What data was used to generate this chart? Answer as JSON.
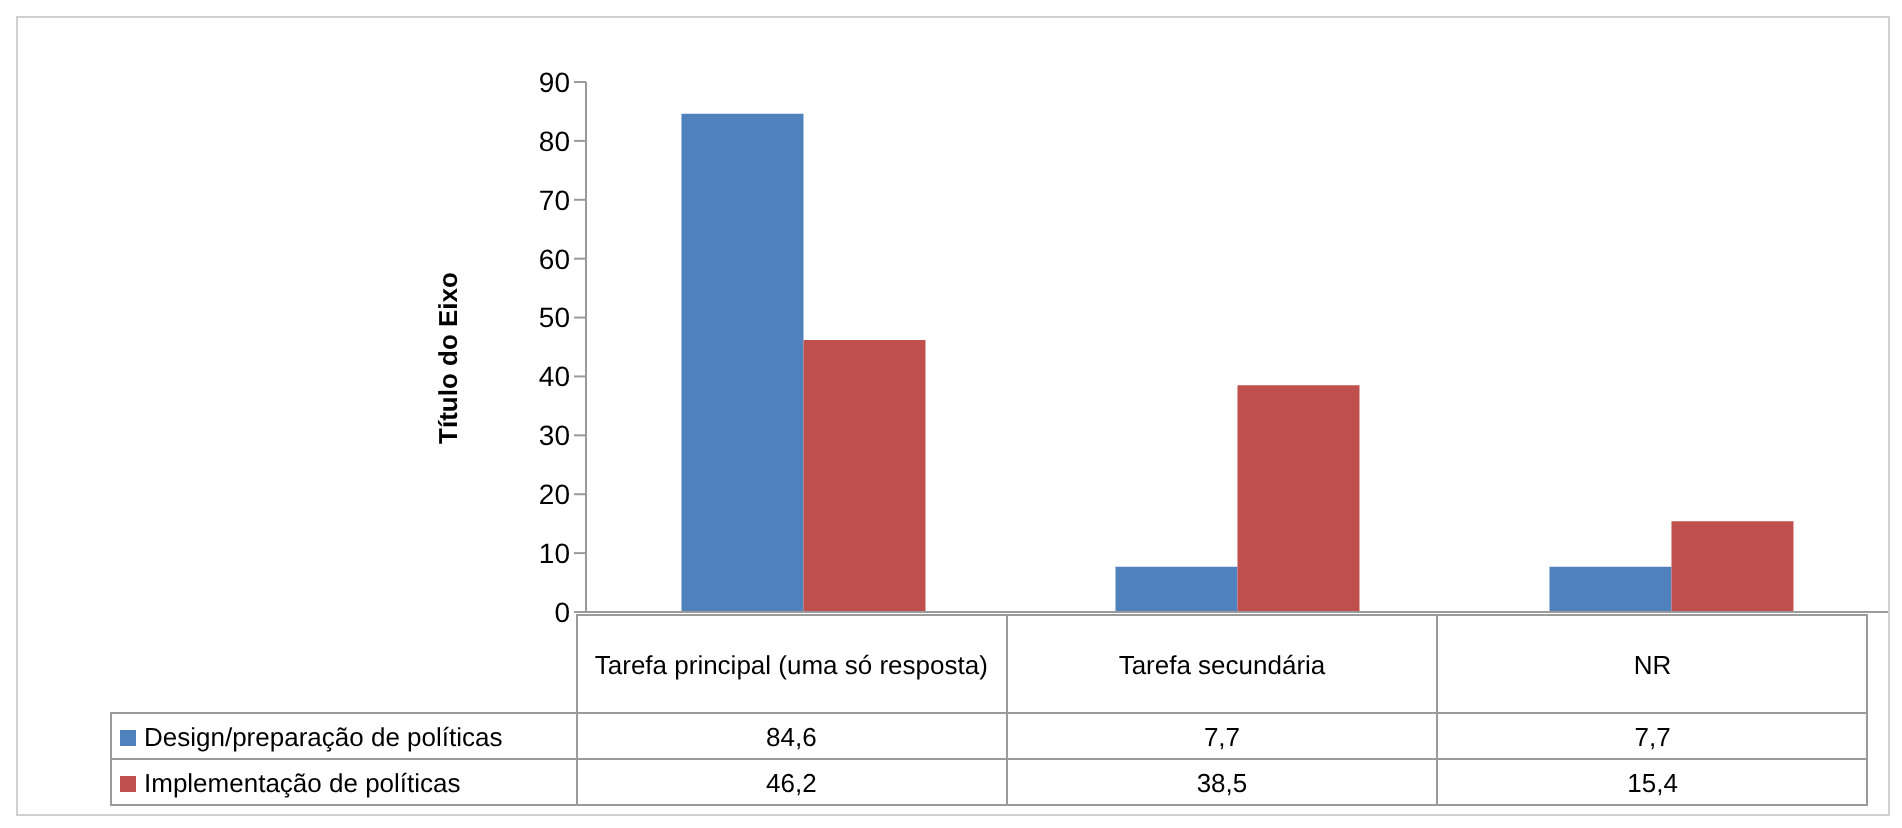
{
  "chart_data": {
    "type": "bar",
    "ylabel": "Título do Eixo",
    "categories": [
      "Tarefa principal (uma só resposta)",
      "Tarefa secundária",
      "NR"
    ],
    "series": [
      {
        "name": "Design/preparação de políticas",
        "color": "#4f81bd",
        "values": [
          84.6,
          7.7,
          7.7
        ],
        "value_labels": [
          "84,6",
          "7,7",
          "7,7"
        ]
      },
      {
        "name": "Implementação de políticas",
        "color": "#c0504d",
        "values": [
          46.2,
          38.5,
          15.4
        ],
        "value_labels": [
          "46,2",
          "38,5",
          "15,4"
        ]
      }
    ],
    "ylim": [
      0,
      90
    ],
    "yticks": [
      0,
      10,
      20,
      30,
      40,
      50,
      60,
      70,
      80,
      90
    ],
    "legend": "bottom"
  }
}
